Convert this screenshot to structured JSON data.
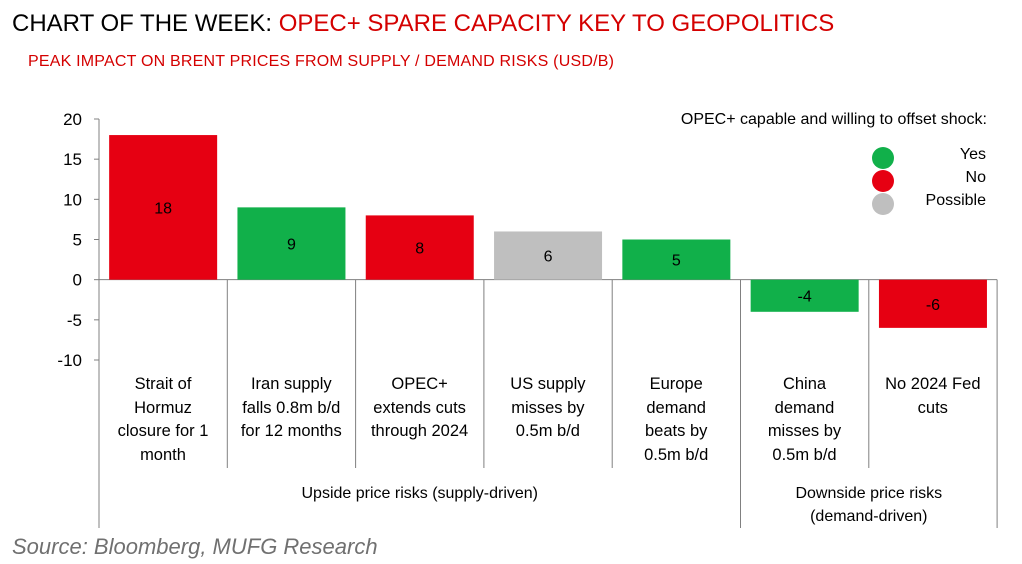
{
  "header": {
    "title_prefix": "CHART OF THE WEEK:",
    "title_main": "OPEC+ SPARE CAPACITY KEY TO GEOPOLITICS",
    "subtitle": "PEAK IMPACT ON BRENT PRICES FROM SUPPLY / DEMAND RISKS (USD/B)"
  },
  "footer": {
    "source": "Source: Bloomberg,  MUFG Research"
  },
  "colors": {
    "yes": "#11b04a",
    "no": "#e60012",
    "possible": "#bfbfbf",
    "title_accent": "#d40000"
  },
  "legend": {
    "title": "OPEC+ capable and willing to offset shock:",
    "items": [
      {
        "label": "Yes",
        "status": "yes"
      },
      {
        "label": "No",
        "status": "no"
      },
      {
        "label": "Possible",
        "status": "possible"
      }
    ]
  },
  "chart_data": {
    "type": "bar",
    "title": "PEAK IMPACT ON BRENT PRICES FROM SUPPLY / DEMAND RISKS (USD/B)",
    "ylim": [
      -10,
      20
    ],
    "yticks": [
      20,
      15,
      10,
      5,
      0,
      -5,
      -10
    ],
    "grid": false,
    "legend_position": "top-right",
    "categories": [
      "Strait of Hormuz closure for 1 month",
      "Iran supply falls 0.8m b/d for 12 months",
      "OPEC+ extends cuts through 2024",
      "US supply misses by 0.5m b/d",
      "Europe demand beats by 0.5m b/d",
      "China demand misses by 0.5m b/d",
      "No 2024 Fed cuts"
    ],
    "category_lines": [
      [
        "Strait of",
        "Hormuz",
        "closure for 1",
        "month"
      ],
      [
        "Iran supply",
        "falls 0.8m b/d",
        "for 12 months"
      ],
      [
        "OPEC+",
        "extends cuts",
        "through 2024"
      ],
      [
        "US supply",
        "misses by",
        "0.5m b/d"
      ],
      [
        "Europe",
        "demand",
        "beats by",
        "0.5m b/d"
      ],
      [
        "China",
        "demand",
        "misses by",
        "0.5m b/d"
      ],
      [
        "No 2024 Fed",
        "cuts"
      ]
    ],
    "values": [
      18,
      9,
      8,
      6,
      5,
      -4,
      -6
    ],
    "status": [
      "no",
      "yes",
      "no",
      "possible",
      "yes",
      "yes",
      "no"
    ],
    "groups": [
      {
        "label": "Upside price risks (supply-driven)",
        "lines": [
          "Upside price risks (supply-driven)"
        ]
      },
      {
        "label": "Downside price risks (demand-driven)",
        "lines": [
          "Downside price risks",
          "(demand-driven)"
        ]
      }
    ]
  }
}
